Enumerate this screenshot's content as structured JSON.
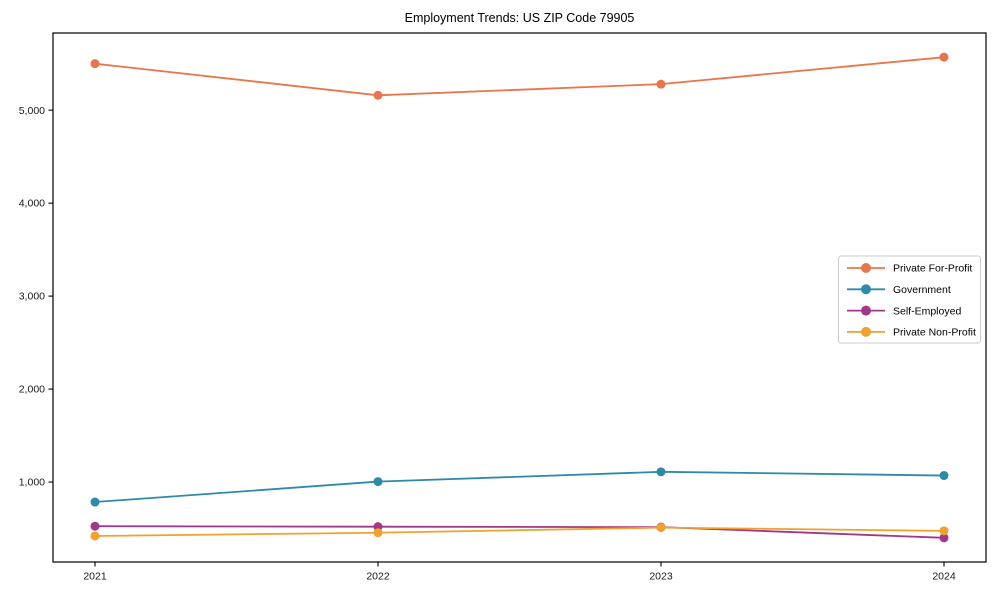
{
  "chart_data": {
    "type": "line",
    "title": "Employment Trends: US ZIP Code 79905",
    "x": [
      "2021",
      "2022",
      "2023",
      "2024"
    ],
    "series": [
      {
        "name": "Private For-Profit",
        "color": "#e8764d",
        "values": [
          5500,
          5160,
          5280,
          5570
        ]
      },
      {
        "name": "Government",
        "color": "#2e8ba8",
        "values": [
          785,
          1005,
          1110,
          1070
        ]
      },
      {
        "name": "Self-Employed",
        "color": "#a23689",
        "values": [
          525,
          520,
          515,
          400
        ]
      },
      {
        "name": "Private Non-Profit",
        "color": "#f2a12d",
        "values": [
          420,
          455,
          510,
          475
        ]
      }
    ],
    "xlabel": "",
    "ylabel": "",
    "ylim": [
      140,
      5830
    ],
    "yticks": [
      1000,
      2000,
      3000,
      4000,
      5000
    ],
    "ytick_labels": [
      "1,000",
      "2,000",
      "3,000",
      "4,000",
      "5,000"
    ],
    "grid": false,
    "legend_position": "right-middle",
    "marker": "circle",
    "axis_color": "#000000",
    "tick_label_color": "#1a1a1a",
    "legend_border_color": "#cccccc",
    "background_color": "#ffffff"
  }
}
